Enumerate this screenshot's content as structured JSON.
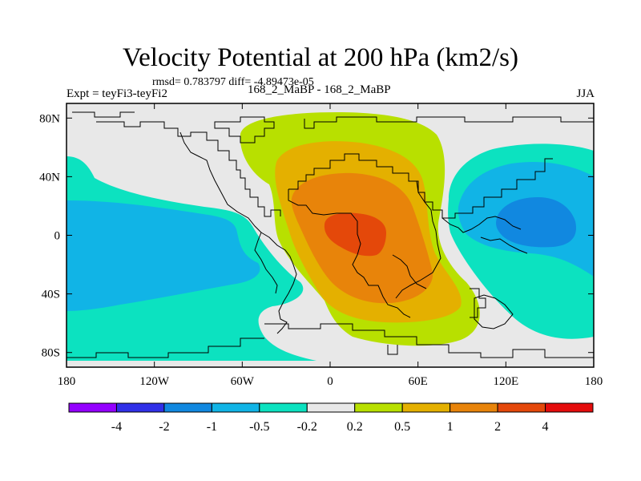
{
  "chart_data": {
    "type": "heatmap",
    "subtype": "filled-contour-map",
    "title": "Velocity Potential at 200 hPa (km2/s)",
    "stats_line": "rmsd= 0.783797 diff= -4.89473e-05",
    "left_label": "Expt = teyFi3-teyFi2",
    "center_label": "168_2_MaBP - 168_2_MaBP",
    "right_label": "JJA",
    "variable": "Velocity Potential",
    "level_hpa": 200,
    "units": "km2/s",
    "rmsd": 0.783797,
    "diff": -4.89473e-05,
    "season": "JJA",
    "x_range": [
      -180,
      180
    ],
    "y_range": [
      -90,
      90
    ],
    "x_ticks": [
      {
        "value": -180,
        "label": "180"
      },
      {
        "value": -120,
        "label": "120W"
      },
      {
        "value": -60,
        "label": "60W"
      },
      {
        "value": 0,
        "label": "0"
      },
      {
        "value": 60,
        "label": "60E"
      },
      {
        "value": 120,
        "label": "120E"
      },
      {
        "value": 180,
        "label": "180"
      }
    ],
    "y_ticks": [
      {
        "value": 80,
        "label": "80N"
      },
      {
        "value": 40,
        "label": "40N"
      },
      {
        "value": 0,
        "label": "0"
      },
      {
        "value": -40,
        "label": "40S"
      },
      {
        "value": -80,
        "label": "80S"
      }
    ],
    "contour_levels": [
      -4,
      -2,
      -1,
      -0.5,
      -0.2,
      0.2,
      0.5,
      1,
      2,
      4
    ],
    "contour_labels": [
      "-4",
      "-2",
      "-1",
      "-0.5",
      "-0.2",
      "0.2",
      "0.5",
      "1",
      "2",
      "4"
    ],
    "palette": [
      "#9400ff",
      "#3030e8",
      "#1188e0",
      "#11b4e6",
      "#0ce2c0",
      "#e8e8e8",
      "#b8e000",
      "#e4b000",
      "#e8840a",
      "#e4480a",
      "#e40c0c"
    ],
    "features": [
      {
        "name": "positive maximum (Africa / Indian Ocean)",
        "center": [
          35,
          5
        ],
        "peak_value": 2.5
      },
      {
        "name": "negative minimum (western Pacific)",
        "center": [
          145,
          5
        ],
        "peak_value": -1.4
      },
      {
        "name": "negative band (eastern Pacific / South America)",
        "center": [
          -130,
          -20
        ],
        "peak_value": -0.8
      }
    ]
  }
}
